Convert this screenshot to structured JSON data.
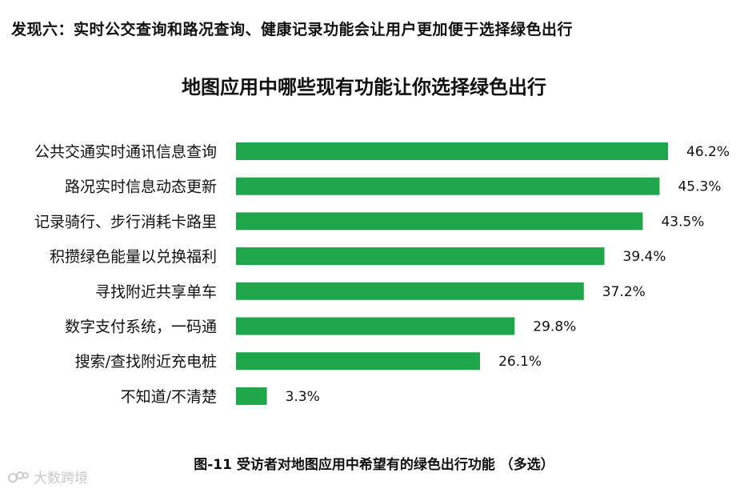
{
  "finding": "发现六：实时公交查询和路况查询、健康记录功能会让用户更加便于选择绿色出行",
  "caption": "图-11 受访者对地图应用中希望有的绿色出行功能 （多选）",
  "watermark": "大数跨境",
  "colors": {
    "bar": "#1fa64a",
    "text": "#111111"
  },
  "chart_data": {
    "type": "bar",
    "orientation": "horizontal",
    "title": "地图应用中哪些现有功能让你选择绿色出行",
    "categories": [
      "公共交通实时通讯信息查询",
      "路况实时信息动态更新",
      "记录骑行、步行消耗卡路里",
      "积攒绿色能量以兑换福利",
      "寻找附近共享单车",
      "数字支付系统，一码通",
      "搜索/查找附近充电桩",
      "不知道/不清楚"
    ],
    "values": [
      46.2,
      45.3,
      43.5,
      39.4,
      37.2,
      29.8,
      26.1,
      3.3
    ],
    "value_labels": [
      "46.2%",
      "45.3%",
      "43.5%",
      "39.4%",
      "37.2%",
      "29.8%",
      "26.1%",
      "3.3%"
    ],
    "xlim": [
      0,
      46.2
    ],
    "grid": false,
    "legend": "none"
  }
}
